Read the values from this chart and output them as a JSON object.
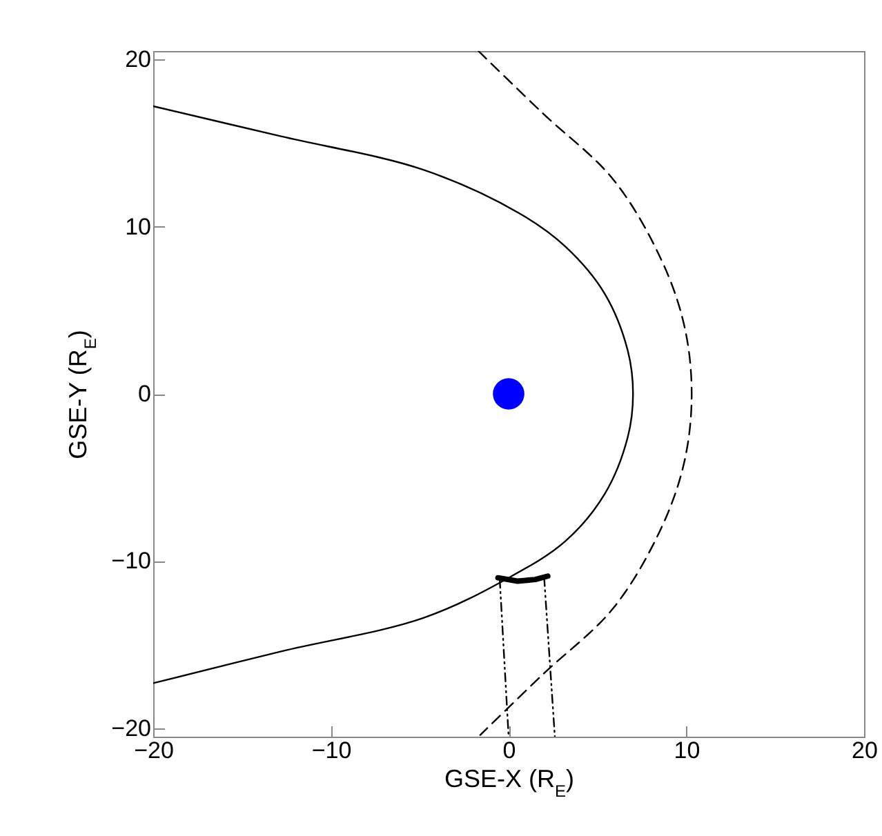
{
  "chart_data": {
    "type": "line",
    "xlabel": "GSE-X (R$_{E}$)",
    "ylabel": "GSE-Y (R$_{E}$)",
    "xlim": [
      -20,
      20
    ],
    "ylim": [
      -20.5,
      20.5
    ],
    "xticks": [
      -20,
      -10,
      0,
      10,
      20
    ],
    "yticks": [
      -20,
      -10,
      0,
      10,
      20
    ],
    "grid": false,
    "series": [
      {
        "color": "#000000",
        "line_style": "solid",
        "x": [
          -20,
          -12.8,
          -4.8,
          0.6,
          3.2,
          5.4,
          6.7,
          7.0,
          6.7,
          5.4,
          3.2,
          0.0,
          -4.8,
          -12.8,
          -20
        ],
        "values": [
          17.2,
          15.4,
          13.4,
          10.8,
          8.8,
          6.0,
          2.6,
          0,
          -2.6,
          -6.0,
          -8.8,
          -11.0,
          -13.4,
          -15.4,
          -17.3
        ]
      },
      {
        "color": "#000000",
        "line_style": "dashed",
        "x": [
          -1.7,
          1.9,
          5.9,
          8.6,
          9.9,
          10.3,
          9.9,
          8.6,
          5.9,
          1.9,
          -1.6
        ],
        "values": [
          20.5,
          16.8,
          12.8,
          8.0,
          4.0,
          0,
          -4.0,
          -8.0,
          -12.8,
          -16.8,
          -20.4
        ]
      },
      {
        "color": "#000000",
        "line_style": "dotted",
        "x": [
          -0.5,
          0.0
        ],
        "values": [
          -11.1,
          -20.5
        ]
      },
      {
        "color": "#000000",
        "line_style": "dotted",
        "x": [
          2.0,
          2.6
        ],
        "values": [
          -11.0,
          -20.5
        ]
      },
      {
        "color": "#000000",
        "line_style": "solid",
        "x": [
          -0.6,
          0.5,
          1.5,
          2.2
        ],
        "values": [
          -11.0,
          -11.2,
          -11.1,
          -10.9
        ]
      },
      {
        "type": "scatter",
        "color": "#0000ff",
        "marker": "circle",
        "x": [
          0
        ],
        "values": [
          0
        ]
      }
    ]
  }
}
